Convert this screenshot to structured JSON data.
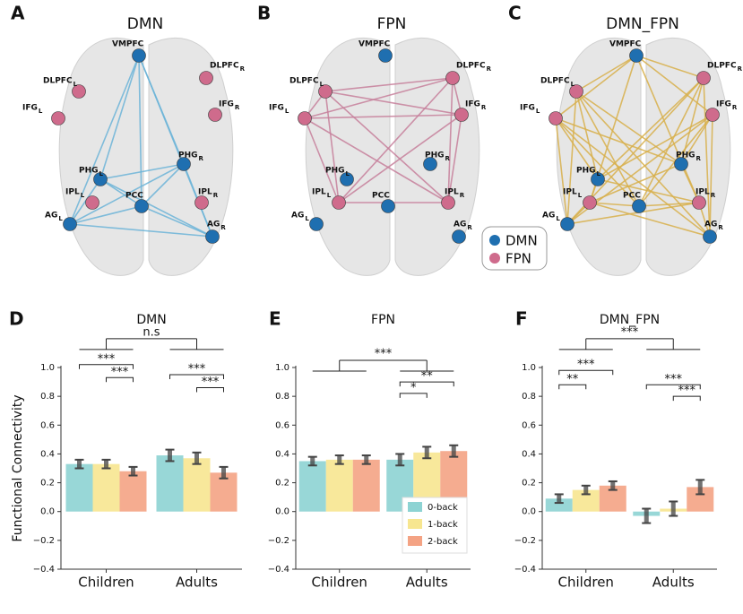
{
  "panels": [
    {
      "letter": "A",
      "title": "DMN"
    },
    {
      "letter": "B",
      "title": "FPN"
    },
    {
      "letter": "C",
      "title": "DMN_FPN"
    }
  ],
  "nodes": [
    {
      "label": "VMPFC"
    },
    {
      "label": "DLPFC",
      "sub": "L"
    },
    {
      "label": "DLPFC",
      "sub": "R"
    },
    {
      "label": "IFG",
      "sub": "L"
    },
    {
      "label": "IFG",
      "sub": "R"
    },
    {
      "label": "PHG",
      "sub": "L"
    },
    {
      "label": "PHG",
      "sub": "R"
    },
    {
      "label": "IPL",
      "sub": "L"
    },
    {
      "label": "IPL",
      "sub": "R"
    },
    {
      "label": "PCC"
    },
    {
      "label": "AG",
      "sub": "L"
    },
    {
      "label": "AG",
      "sub": "R"
    }
  ],
  "legend": [
    {
      "name": "DMN",
      "color": "#1f6fb0"
    },
    {
      "name": "FPN",
      "color": "#cf6b8c"
    }
  ],
  "chart_data": [
    {
      "type": "bar",
      "panel": "D",
      "title": "DMN",
      "ylabel": "Functional Connectivity",
      "categories": [
        "Children",
        "Adults"
      ],
      "series": [
        {
          "name": "0-back",
          "color": "#8dd3d3",
          "values": [
            0.33,
            0.39
          ],
          "errors": [
            0.03,
            0.04
          ]
        },
        {
          "name": "1-back",
          "color": "#f7e690",
          "values": [
            0.33,
            0.37
          ],
          "errors": [
            0.03,
            0.04
          ]
        },
        {
          "name": "2-back",
          "color": "#f4a384",
          "values": [
            0.28,
            0.27
          ],
          "errors": [
            0.03,
            0.04
          ]
        }
      ],
      "ylim": [
        -0.4,
        1.0
      ],
      "yticks": [
        {
          "value": -0.4,
          "label": "−0.4"
        },
        {
          "value": -0.2,
          "label": "−0.2"
        },
        {
          "value": 0,
          "label": "0.0"
        },
        0.2,
        0.4,
        0.6,
        0.8,
        {
          "value": 1,
          "label": "1.0"
        }
      ],
      "annotations": [
        "n.s",
        "***",
        "***",
        "***",
        "***"
      ]
    },
    {
      "type": "bar",
      "panel": "E",
      "title": "FPN",
      "categories": [
        "Children",
        "Adults"
      ],
      "series": [
        {
          "name": "0-back",
          "color": "#8dd3d3",
          "values": [
            0.35,
            0.36
          ],
          "errors": [
            0.03,
            0.04
          ]
        },
        {
          "name": "1-back",
          "color": "#f7e690",
          "values": [
            0.36,
            0.41
          ],
          "errors": [
            0.03,
            0.04
          ]
        },
        {
          "name": "2-back",
          "color": "#f4a384",
          "values": [
            0.36,
            0.42
          ],
          "errors": [
            0.03,
            0.04
          ]
        }
      ],
      "ylim": [
        -0.4,
        1.0
      ],
      "yticks": [
        {
          "value": -0.4,
          "label": "−0.4"
        },
        {
          "value": -0.2,
          "label": "−0.2"
        },
        {
          "value": 0,
          "label": "0.0"
        },
        0.2,
        0.4,
        0.6,
        0.8,
        {
          "value": 1,
          "label": "1.0"
        }
      ],
      "legend": "lower right",
      "annotations": [
        "***",
        "**",
        "*"
      ]
    },
    {
      "type": "bar",
      "panel": "F",
      "title": "DMN_FPN",
      "categories": [
        "Children",
        "Adults"
      ],
      "series": [
        {
          "name": "0-back",
          "color": "#8dd3d3",
          "values": [
            0.09,
            -0.03
          ],
          "errors": [
            0.03,
            0.05
          ]
        },
        {
          "name": "1-back",
          "color": "#f7e690",
          "values": [
            0.15,
            0.02
          ],
          "errors": [
            0.03,
            0.05
          ]
        },
        {
          "name": "2-back",
          "color": "#f4a384",
          "values": [
            0.18,
            0.17
          ],
          "errors": [
            0.03,
            0.05
          ]
        }
      ],
      "ylim": [
        -0.4,
        1.0
      ],
      "yticks": [
        {
          "value": -0.4,
          "label": "−0.4"
        },
        {
          "value": -0.2,
          "label": "−0.2"
        },
        {
          "value": 0,
          "label": "0.0"
        },
        0.2,
        0.4,
        0.6,
        0.8,
        {
          "value": 1,
          "label": "1.0"
        }
      ],
      "annotations": [
        "***",
        "***",
        "**",
        "***",
        "***"
      ]
    }
  ]
}
